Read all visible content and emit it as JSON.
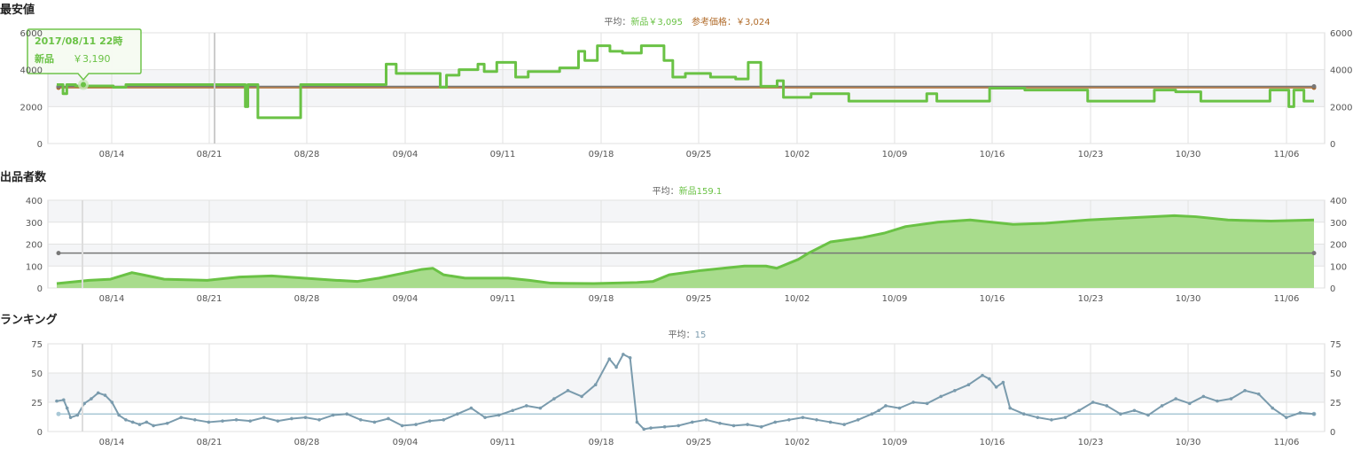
{
  "colors": {
    "new": "#6ac245",
    "new_fill": "#a8dc8c",
    "ref": "#b06a28",
    "rank": "#7a9bad",
    "rank_avg": "#a9c8d6",
    "avg_line": "#777777",
    "grid": "#e2e2e2",
    "band": "#f4f5f7"
  },
  "chart_data": [
    {
      "id": "price",
      "section_title": "最安値",
      "type": "line",
      "x_ticks": [
        "08/14",
        "08/21",
        "08/28",
        "09/04",
        "09/11",
        "09/18",
        "09/25",
        "10/02",
        "10/09",
        "10/16",
        "10/23",
        "10/30",
        "11/06"
      ],
      "ylim": [
        0,
        6000
      ],
      "y_ticks": [
        "0",
        "2000",
        "4000",
        "6000"
      ],
      "avg": {
        "label": "平均：",
        "new_label": "新品￥3,095",
        "ref_label": "参考価格：￥3,024",
        "new_value": 3095,
        "ref_value": 3024
      },
      "tooltip": {
        "date": "2017/08/11 22時",
        "label": "新品",
        "value": "￥3,190"
      },
      "series": [
        {
          "name": "新品",
          "step": true,
          "points": [
            [
              0,
              3190
            ],
            [
              0.5,
              2700
            ],
            [
              0.8,
              3190
            ],
            [
              1.5,
              3120
            ],
            [
              4.5,
              3050
            ],
            [
              5.5,
              3190
            ],
            [
              14.8,
              3190
            ],
            [
              15,
              2000
            ],
            [
              15.2,
              3190
            ],
            [
              15.8,
              3190
            ],
            [
              16,
              1400
            ],
            [
              19.2,
              1400
            ],
            [
              19.4,
              3190
            ],
            [
              26,
              3190
            ],
            [
              26.2,
              4300
            ],
            [
              27,
              3800
            ],
            [
              28,
              3800
            ],
            [
              30.5,
              3050
            ],
            [
              31,
              3700
            ],
            [
              32,
              4000
            ],
            [
              33.5,
              4300
            ],
            [
              34,
              3900
            ],
            [
              35,
              4400
            ],
            [
              36.5,
              3600
            ],
            [
              37.5,
              3900
            ],
            [
              40,
              4100
            ],
            [
              41.5,
              5000
            ],
            [
              42,
              4500
            ],
            [
              43,
              5300
            ],
            [
              44,
              5000
            ],
            [
              45,
              4900
            ],
            [
              46.5,
              5300
            ],
            [
              48.3,
              4500
            ],
            [
              49,
              3600
            ],
            [
              50,
              3800
            ],
            [
              51,
              3800
            ],
            [
              52,
              3600
            ],
            [
              54,
              3500
            ],
            [
              55,
              4400
            ],
            [
              56,
              3100
            ],
            [
              57.3,
              3400
            ],
            [
              57.8,
              2500
            ],
            [
              60,
              2700
            ],
            [
              63,
              2300
            ],
            [
              69,
              2300
            ],
            [
              69.2,
              2700
            ],
            [
              70,
              2300
            ],
            [
              74,
              2300
            ],
            [
              74.2,
              3000
            ],
            [
              77,
              2900
            ],
            [
              80,
              2900
            ],
            [
              82,
              2300
            ],
            [
              87,
              2300
            ],
            [
              87.3,
              2900
            ],
            [
              89,
              2800
            ],
            [
              91,
              2300
            ],
            [
              96,
              2300
            ],
            [
              96.5,
              2900
            ],
            [
              98,
              2000
            ],
            [
              98.4,
              2900
            ],
            [
              99.2,
              2300
            ],
            [
              100,
              2300
            ]
          ]
        }
      ]
    },
    {
      "id": "sellers",
      "section_title": "出品者数",
      "type": "area",
      "x_ticks": [
        "08/14",
        "08/21",
        "08/28",
        "09/04",
        "09/11",
        "09/18",
        "09/25",
        "10/02",
        "10/09",
        "10/16",
        "10/23",
        "10/30",
        "11/06"
      ],
      "ylim": [
        0,
        400
      ],
      "y_ticks": [
        "0",
        "100",
        "200",
        "300",
        "400"
      ],
      "avg": {
        "label": "平均：",
        "new_label": "新品159.1",
        "new_value": 159.1
      },
      "series": [
        {
          "name": "新品",
          "points": [
            [
              0,
              20
            ],
            [
              3,
              35
            ],
            [
              5,
              40
            ],
            [
              7,
              70
            ],
            [
              8,
              60
            ],
            [
              10,
              40
            ],
            [
              14,
              35
            ],
            [
              17,
              50
            ],
            [
              20,
              55
            ],
            [
              23,
              45
            ],
            [
              26,
              35
            ],
            [
              28,
              30
            ],
            [
              30,
              45
            ],
            [
              32,
              65
            ],
            [
              34,
              85
            ],
            [
              35,
              90
            ],
            [
              36,
              60
            ],
            [
              38,
              45
            ],
            [
              42,
              45
            ],
            [
              44,
              35
            ],
            [
              46,
              22
            ],
            [
              50,
              20
            ],
            [
              54,
              25
            ],
            [
              55.5,
              30
            ],
            [
              57,
              60
            ],
            [
              60,
              80
            ],
            [
              62,
              90
            ],
            [
              64,
              100
            ],
            [
              66,
              100
            ],
            [
              67,
              90
            ],
            [
              68,
              110
            ],
            [
              69,
              130
            ],
            [
              70,
              160
            ],
            [
              72,
              210
            ],
            [
              75,
              230
            ],
            [
              77,
              250
            ],
            [
              79,
              280
            ],
            [
              82,
              300
            ],
            [
              85,
              310
            ],
            [
              87,
              300
            ],
            [
              89,
              290
            ],
            [
              92,
              295
            ],
            [
              96,
              310
            ],
            [
              100,
              320
            ],
            [
              104,
              330
            ],
            [
              106,
              325
            ],
            [
              109,
              310
            ],
            [
              113,
              305
            ],
            [
              117,
              310
            ]
          ]
        }
      ]
    },
    {
      "id": "ranking",
      "section_title": "ランキング",
      "type": "line",
      "x_ticks": [
        "08/14",
        "08/21",
        "08/28",
        "09/04",
        "09/11",
        "09/18",
        "09/25",
        "10/02",
        "10/09",
        "10/16",
        "10/23",
        "10/30",
        "11/06"
      ],
      "ylim": [
        0,
        75
      ],
      "y_ticks": [
        "0",
        "25",
        "50",
        "75"
      ],
      "avg": {
        "label": "平均：",
        "value_label": "15",
        "value": 15
      },
      "series": [
        {
          "name": "ランキング",
          "points": [
            [
              0,
              26
            ],
            [
              1,
              27
            ],
            [
              1.5,
              20
            ],
            [
              2,
              12
            ],
            [
              3,
              14
            ],
            [
              4,
              24
            ],
            [
              5,
              28
            ],
            [
              6,
              33
            ],
            [
              7,
              31
            ],
            [
              8,
              25
            ],
            [
              9,
              14
            ],
            [
              10,
              10
            ],
            [
              11,
              8
            ],
            [
              12,
              6
            ],
            [
              13,
              8
            ],
            [
              14,
              5
            ],
            [
              16,
              7
            ],
            [
              18,
              12
            ],
            [
              20,
              10
            ],
            [
              22,
              8
            ],
            [
              24,
              9
            ],
            [
              26,
              10
            ],
            [
              28,
              9
            ],
            [
              30,
              12
            ],
            [
              32,
              9
            ],
            [
              34,
              11
            ],
            [
              36,
              12
            ],
            [
              38,
              10
            ],
            [
              40,
              14
            ],
            [
              42,
              15
            ],
            [
              44,
              10
            ],
            [
              46,
              8
            ],
            [
              48,
              11
            ],
            [
              50,
              5
            ],
            [
              52,
              6
            ],
            [
              54,
              9
            ],
            [
              56,
              10
            ],
            [
              58,
              15
            ],
            [
              60,
              20
            ],
            [
              62,
              12
            ],
            [
              64,
              14
            ],
            [
              66,
              18
            ],
            [
              68,
              22
            ],
            [
              70,
              20
            ],
            [
              72,
              28
            ],
            [
              74,
              35
            ],
            [
              76,
              30
            ],
            [
              78,
              40
            ],
            [
              80,
              62
            ],
            [
              81,
              55
            ],
            [
              82,
              66
            ],
            [
              83,
              63
            ],
            [
              84,
              8
            ],
            [
              85,
              2
            ],
            [
              86,
              3
            ],
            [
              88,
              4
            ],
            [
              90,
              5
            ],
            [
              92,
              8
            ],
            [
              94,
              10
            ],
            [
              96,
              7
            ],
            [
              98,
              5
            ],
            [
              100,
              6
            ],
            [
              102,
              4
            ],
            [
              104,
              8
            ],
            [
              106,
              10
            ],
            [
              108,
              12
            ],
            [
              110,
              10
            ],
            [
              112,
              8
            ],
            [
              114,
              6
            ],
            [
              116,
              10
            ],
            [
              118,
              15
            ],
            [
              119,
              18
            ],
            [
              120,
              22
            ],
            [
              122,
              20
            ],
            [
              124,
              25
            ],
            [
              126,
              24
            ],
            [
              128,
              30
            ],
            [
              130,
              35
            ],
            [
              132,
              40
            ],
            [
              134,
              48
            ],
            [
              135,
              45
            ],
            [
              136,
              38
            ],
            [
              137,
              42
            ],
            [
              138,
              20
            ],
            [
              140,
              15
            ],
            [
              142,
              12
            ],
            [
              144,
              10
            ],
            [
              146,
              12
            ],
            [
              148,
              18
            ],
            [
              150,
              25
            ],
            [
              152,
              22
            ],
            [
              154,
              15
            ],
            [
              156,
              18
            ],
            [
              158,
              14
            ],
            [
              160,
              22
            ],
            [
              162,
              28
            ],
            [
              164,
              24
            ],
            [
              166,
              30
            ],
            [
              168,
              26
            ],
            [
              170,
              28
            ],
            [
              172,
              35
            ],
            [
              174,
              32
            ],
            [
              176,
              20
            ],
            [
              178,
              12
            ],
            [
              180,
              16
            ],
            [
              182,
              15
            ]
          ]
        }
      ]
    }
  ]
}
